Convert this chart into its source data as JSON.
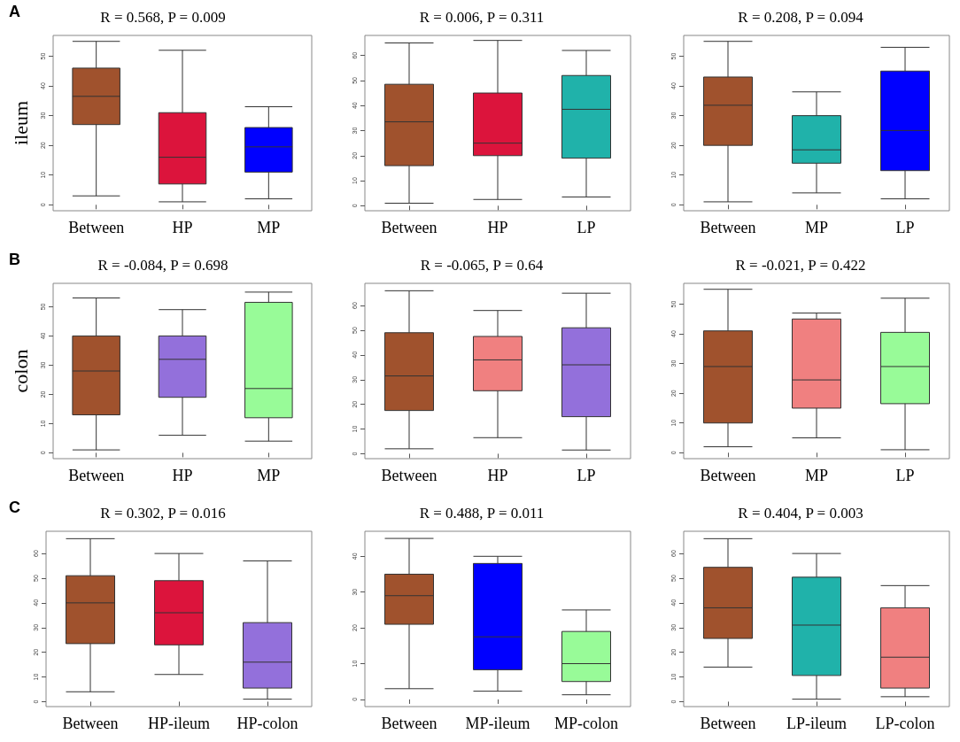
{
  "chart_data": [
    {
      "type": "box",
      "title": "R = 0.568, P = 0.009",
      "ylabel": "ileum",
      "annotations": [
        "A"
      ],
      "categories": [
        "Between",
        "HP",
        "MP"
      ],
      "colors": [
        "#a0522d",
        "#dc143c",
        "#0000ff"
      ],
      "ylim": [
        -2,
        57
      ],
      "yticks": [
        0,
        10,
        20,
        30,
        40,
        50
      ],
      "boxes": [
        {
          "low": 3,
          "q1": 27,
          "median": 36.5,
          "q3": 46,
          "high": 55
        },
        {
          "low": 1,
          "q1": 7,
          "median": 16,
          "q3": 31,
          "high": 52
        },
        {
          "low": 2,
          "q1": 11,
          "median": 19.5,
          "q3": 26,
          "high": 33
        }
      ]
    },
    {
      "type": "box",
      "title": "R = 0.006, P = 0.311",
      "categories": [
        "Between",
        "HP",
        "LP"
      ],
      "colors": [
        "#a0522d",
        "#dc143c",
        "#20b2aa"
      ],
      "ylim": [
        -2,
        68
      ],
      "yticks": [
        0,
        10,
        20,
        30,
        40,
        50,
        60
      ],
      "boxes": [
        {
          "low": 1,
          "q1": 16,
          "median": 33.5,
          "q3": 48.5,
          "high": 65
        },
        {
          "low": 2.5,
          "q1": 20,
          "median": 25,
          "q3": 45,
          "high": 66
        },
        {
          "low": 3.5,
          "q1": 19,
          "median": 38.5,
          "q3": 52,
          "high": 62
        }
      ]
    },
    {
      "type": "box",
      "title": "R = 0.208, P = 0.094",
      "categories": [
        "Between",
        "MP",
        "LP"
      ],
      "colors": [
        "#a0522d",
        "#20b2aa",
        "#0000ff"
      ],
      "ylim": [
        -2,
        57
      ],
      "yticks": [
        0,
        10,
        20,
        30,
        40,
        50
      ],
      "boxes": [
        {
          "low": 1,
          "q1": 20,
          "median": 33.5,
          "q3": 43,
          "high": 55
        },
        {
          "low": 4,
          "q1": 14,
          "median": 18.5,
          "q3": 30,
          "high": 38
        },
        {
          "low": 2,
          "q1": 11.5,
          "median": 25,
          "q3": 45,
          "high": 53
        }
      ]
    },
    {
      "type": "box",
      "title": "R = -0.084, P = 0.698",
      "ylabel": "colon",
      "annotations": [
        "B"
      ],
      "categories": [
        "Between",
        "HP",
        "MP"
      ],
      "colors": [
        "#a0522d",
        "#9370db",
        "#98fb98"
      ],
      "ylim": [
        -2,
        58
      ],
      "yticks": [
        0,
        10,
        20,
        30,
        40,
        50
      ],
      "boxes": [
        {
          "low": 1,
          "q1": 13,
          "median": 28,
          "q3": 40,
          "high": 53
        },
        {
          "low": 6,
          "q1": 19,
          "median": 32,
          "q3": 40,
          "high": 49
        },
        {
          "low": 4,
          "q1": 12,
          "median": 22,
          "q3": 51.5,
          "high": 55
        }
      ]
    },
    {
      "type": "box",
      "title": "R = -0.065, P = 0.64",
      "categories": [
        "Between",
        "HP",
        "LP"
      ],
      "colors": [
        "#a0522d",
        "#f08080",
        "#9370db"
      ],
      "ylim": [
        -2,
        69
      ],
      "yticks": [
        0,
        10,
        20,
        30,
        40,
        50,
        60
      ],
      "boxes": [
        {
          "low": 2,
          "q1": 17.5,
          "median": 31.5,
          "q3": 49,
          "high": 66
        },
        {
          "low": 6.5,
          "q1": 25.5,
          "median": 38,
          "q3": 47.5,
          "high": 58
        },
        {
          "low": 1.5,
          "q1": 15,
          "median": 36,
          "q3": 51,
          "high": 65
        }
      ]
    },
    {
      "type": "box",
      "title": "R = -0.021, P = 0.422",
      "categories": [
        "Between",
        "MP",
        "LP"
      ],
      "colors": [
        "#a0522d",
        "#f08080",
        "#98fb98"
      ],
      "ylim": [
        -2,
        57
      ],
      "yticks": [
        0,
        10,
        20,
        30,
        40,
        50
      ],
      "boxes": [
        {
          "low": 2,
          "q1": 10,
          "median": 29,
          "q3": 41,
          "high": 55
        },
        {
          "low": 5,
          "q1": 15,
          "median": 24.5,
          "q3": 45,
          "high": 47
        },
        {
          "low": 1,
          "q1": 16.5,
          "median": 29,
          "q3": 40.5,
          "high": 52
        }
      ]
    },
    {
      "type": "box",
      "title": "R = 0.302, P = 0.016",
      "annotations": [
        "C"
      ],
      "categories": [
        "Between",
        "HP-ileum",
        "HP-colon"
      ],
      "colors": [
        "#a0522d",
        "#dc143c",
        "#9370db"
      ],
      "ylim": [
        -2,
        69
      ],
      "yticks": [
        0,
        10,
        20,
        30,
        40,
        50,
        60
      ],
      "boxes": [
        {
          "low": 4,
          "q1": 23.5,
          "median": 40,
          "q3": 51,
          "high": 66
        },
        {
          "low": 11,
          "q1": 23,
          "median": 36,
          "q3": 49,
          "high": 60
        },
        {
          "low": 1,
          "q1": 5.5,
          "median": 16,
          "q3": 32,
          "high": 57
        }
      ]
    },
    {
      "type": "box",
      "title": "R = 0.488, P = 0.011",
      "categories": [
        "Between",
        "MP-ileum",
        "MP-colon"
      ],
      "colors": [
        "#a0522d",
        "#0000ff",
        "#98fb98"
      ],
      "ylim": [
        -2,
        47
      ],
      "yticks": [
        0,
        10,
        20,
        30,
        40
      ],
      "boxes": [
        {
          "low": 3,
          "q1": 21,
          "median": 29,
          "q3": 35,
          "high": 45
        },
        {
          "low": 2.3,
          "q1": 8.3,
          "median": 17.5,
          "q3": 38,
          "high": 40
        },
        {
          "low": 1.3,
          "q1": 5,
          "median": 10,
          "q3": 19,
          "high": 25
        }
      ]
    },
    {
      "type": "box",
      "title": "R = 0.404, P = 0.003",
      "categories": [
        "Between",
        "LP-ileum",
        "LP-colon"
      ],
      "colors": [
        "#a0522d",
        "#20b2aa",
        "#f08080"
      ],
      "ylim": [
        -2,
        69
      ],
      "yticks": [
        0,
        10,
        20,
        30,
        40,
        50,
        60
      ],
      "boxes": [
        {
          "low": 14,
          "q1": 25.6,
          "median": 38,
          "q3": 54.4,
          "high": 66
        },
        {
          "low": 1,
          "q1": 10.6,
          "median": 31,
          "q3": 50.4,
          "high": 60
        },
        {
          "low": 2,
          "q1": 5.5,
          "median": 18,
          "q3": 38,
          "high": 47
        }
      ]
    }
  ]
}
